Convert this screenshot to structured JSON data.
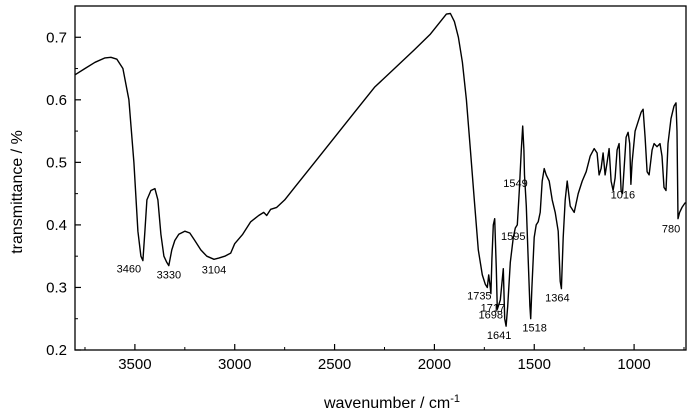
{
  "chart_data": {
    "type": "line",
    "xlabel": "wavenumber / cm",
    "xlabel_sup": "-1",
    "ylabel": "transmittance / %",
    "xlim": [
      3800,
      740
    ],
    "ylim": [
      0.2,
      0.75
    ],
    "x_reversed": true,
    "grid": false,
    "x_ticks": [
      3500,
      3000,
      2500,
      2000,
      1500,
      1000
    ],
    "y_ticks": [
      0.2,
      0.3,
      0.4,
      0.5,
      0.6,
      0.7
    ],
    "series": [
      {
        "color": "#000000",
        "points": [
          [
            3800,
            0.64
          ],
          [
            3750,
            0.65
          ],
          [
            3700,
            0.66
          ],
          [
            3650,
            0.667
          ],
          [
            3620,
            0.668
          ],
          [
            3590,
            0.665
          ],
          [
            3560,
            0.65
          ],
          [
            3530,
            0.6
          ],
          [
            3505,
            0.5
          ],
          [
            3485,
            0.39
          ],
          [
            3470,
            0.35
          ],
          [
            3460,
            0.343
          ],
          [
            3450,
            0.39
          ],
          [
            3440,
            0.44
          ],
          [
            3420,
            0.455
          ],
          [
            3400,
            0.458
          ],
          [
            3385,
            0.44
          ],
          [
            3370,
            0.385
          ],
          [
            3355,
            0.35
          ],
          [
            3340,
            0.34
          ],
          [
            3330,
            0.335
          ],
          [
            3315,
            0.36
          ],
          [
            3300,
            0.375
          ],
          [
            3280,
            0.385
          ],
          [
            3250,
            0.39
          ],
          [
            3225,
            0.387
          ],
          [
            3200,
            0.375
          ],
          [
            3170,
            0.36
          ],
          [
            3140,
            0.35
          ],
          [
            3104,
            0.345
          ],
          [
            3080,
            0.347
          ],
          [
            3050,
            0.35
          ],
          [
            3020,
            0.355
          ],
          [
            3000,
            0.37
          ],
          [
            2960,
            0.385
          ],
          [
            2920,
            0.405
          ],
          [
            2880,
            0.415
          ],
          [
            2855,
            0.42
          ],
          [
            2840,
            0.415
          ],
          [
            2820,
            0.425
          ],
          [
            2790,
            0.428
          ],
          [
            2750,
            0.44
          ],
          [
            2700,
            0.46
          ],
          [
            2600,
            0.5
          ],
          [
            2500,
            0.54
          ],
          [
            2400,
            0.58
          ],
          [
            2300,
            0.62
          ],
          [
            2200,
            0.65
          ],
          [
            2100,
            0.68
          ],
          [
            2020,
            0.705
          ],
          [
            1970,
            0.725
          ],
          [
            1940,
            0.737
          ],
          [
            1920,
            0.738
          ],
          [
            1900,
            0.725
          ],
          [
            1880,
            0.7
          ],
          [
            1860,
            0.66
          ],
          [
            1840,
            0.6
          ],
          [
            1820,
            0.52
          ],
          [
            1800,
            0.44
          ],
          [
            1780,
            0.36
          ],
          [
            1760,
            0.32
          ],
          [
            1745,
            0.305
          ],
          [
            1735,
            0.3
          ],
          [
            1728,
            0.32
          ],
          [
            1720,
            0.3
          ],
          [
            1717,
            0.29
          ],
          [
            1712,
            0.345
          ],
          [
            1705,
            0.4
          ],
          [
            1698,
            0.41
          ],
          [
            1690,
            0.33
          ],
          [
            1685,
            0.265
          ],
          [
            1670,
            0.28
          ],
          [
            1655,
            0.33
          ],
          [
            1648,
            0.25
          ],
          [
            1641,
            0.238
          ],
          [
            1633,
            0.27
          ],
          [
            1620,
            0.34
          ],
          [
            1605,
            0.38
          ],
          [
            1595,
            0.395
          ],
          [
            1585,
            0.4
          ],
          [
            1575,
            0.455
          ],
          [
            1565,
            0.52
          ],
          [
            1558,
            0.558
          ],
          [
            1552,
            0.52
          ],
          [
            1549,
            0.48
          ],
          [
            1540,
            0.43
          ],
          [
            1530,
            0.34
          ],
          [
            1522,
            0.27
          ],
          [
            1518,
            0.25
          ],
          [
            1512,
            0.3
          ],
          [
            1500,
            0.38
          ],
          [
            1490,
            0.4
          ],
          [
            1480,
            0.405
          ],
          [
            1470,
            0.42
          ],
          [
            1460,
            0.47
          ],
          [
            1450,
            0.49
          ],
          [
            1440,
            0.48
          ],
          [
            1425,
            0.47
          ],
          [
            1410,
            0.44
          ],
          [
            1395,
            0.42
          ],
          [
            1380,
            0.39
          ],
          [
            1370,
            0.31
          ],
          [
            1364,
            0.298
          ],
          [
            1355,
            0.38
          ],
          [
            1345,
            0.44
          ],
          [
            1335,
            0.47
          ],
          [
            1320,
            0.43
          ],
          [
            1300,
            0.42
          ],
          [
            1280,
            0.45
          ],
          [
            1260,
            0.47
          ],
          [
            1240,
            0.485
          ],
          [
            1220,
            0.51
          ],
          [
            1200,
            0.522
          ],
          [
            1185,
            0.515
          ],
          [
            1175,
            0.48
          ],
          [
            1165,
            0.49
          ],
          [
            1155,
            0.515
          ],
          [
            1145,
            0.48
          ],
          [
            1135,
            0.5
          ],
          [
            1125,
            0.522
          ],
          [
            1115,
            0.47
          ],
          [
            1105,
            0.455
          ],
          [
            1095,
            0.475
          ],
          [
            1085,
            0.52
          ],
          [
            1075,
            0.53
          ],
          [
            1065,
            0.455
          ],
          [
            1058,
            0.45
          ],
          [
            1050,
            0.49
          ],
          [
            1040,
            0.54
          ],
          [
            1030,
            0.548
          ],
          [
            1022,
            0.53
          ],
          [
            1016,
            0.465
          ],
          [
            1010,
            0.5
          ],
          [
            995,
            0.55
          ],
          [
            980,
            0.565
          ],
          [
            965,
            0.58
          ],
          [
            955,
            0.585
          ],
          [
            945,
            0.54
          ],
          [
            935,
            0.485
          ],
          [
            925,
            0.48
          ],
          [
            910,
            0.52
          ],
          [
            900,
            0.53
          ],
          [
            885,
            0.525
          ],
          [
            870,
            0.53
          ],
          [
            860,
            0.51
          ],
          [
            850,
            0.46
          ],
          [
            840,
            0.455
          ],
          [
            830,
            0.53
          ],
          [
            815,
            0.57
          ],
          [
            800,
            0.59
          ],
          [
            790,
            0.595
          ],
          [
            785,
            0.55
          ],
          [
            780,
            0.41
          ],
          [
            772,
            0.42
          ],
          [
            760,
            0.428
          ],
          [
            745,
            0.435
          ],
          [
            740,
            0.435
          ]
        ]
      }
    ],
    "annotations": [
      {
        "text": "3460",
        "x": 3460,
        "y": 0.343
      },
      {
        "text": "3330",
        "x": 3330,
        "y": 0.335
      },
      {
        "text": "3104",
        "x": 3104,
        "y": 0.345
      },
      {
        "text": "1735",
        "x": 1735,
        "y": 0.3
      },
      {
        "text": "1717",
        "x": 1717,
        "y": 0.29
      },
      {
        "text": "1698",
        "x": 1698,
        "y": 0.41
      },
      {
        "text": "1641",
        "x": 1641,
        "y": 0.238
      },
      {
        "text": "1595",
        "x": 1595,
        "y": 0.395
      },
      {
        "text": "1549",
        "x": 1549,
        "y": 0.48
      },
      {
        "text": "1518",
        "x": 1518,
        "y": 0.25
      },
      {
        "text": "1364",
        "x": 1364,
        "y": 0.298
      },
      {
        "text": "1016",
        "x": 1016,
        "y": 0.465
      },
      {
        "text": "780",
        "x": 780,
        "y": 0.41
      }
    ]
  }
}
